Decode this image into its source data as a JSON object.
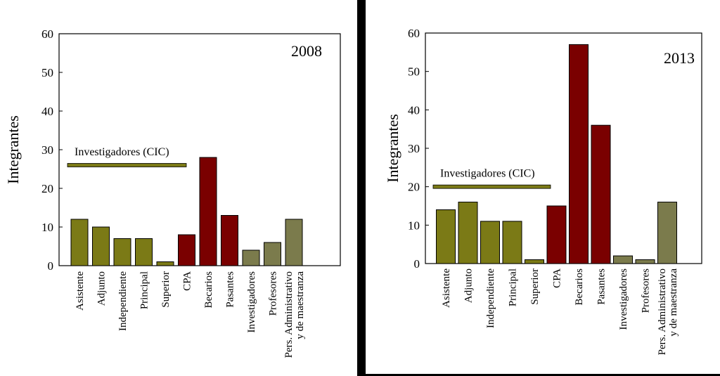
{
  "chart_data": [
    {
      "type": "bar",
      "title": "2008",
      "ylabel": "Integrantes",
      "xlabel": "",
      "ylim": [
        0,
        60
      ],
      "yticks": [
        0,
        10,
        20,
        30,
        40,
        50,
        60
      ],
      "categories": [
        "Asistente",
        "Adjunto",
        "Independiente",
        "Principal",
        "Superior",
        "CPA",
        "Becarios",
        "Pasantes",
        "Investigadores",
        "Profesores",
        "Pers. Administrativo\ny de maestranza"
      ],
      "values": [
        12,
        10,
        7,
        7,
        1,
        8,
        28,
        13,
        4,
        6,
        12
      ],
      "bar_colors": [
        "#7b7a16",
        "#7b7a16",
        "#7b7a16",
        "#7b7a16",
        "#7b7a16",
        "#7a0000",
        "#7a0000",
        "#7a0000",
        "#7b7b4c",
        "#7b7b4c",
        "#7b7b4c"
      ],
      "annotation": {
        "text": "Investigadores (CIC)",
        "value": 26,
        "from_index": 0,
        "to_index": 4,
        "color": "#7b7a16"
      },
      "grid": false,
      "legend": "none"
    },
    {
      "type": "bar",
      "title": "2013",
      "ylabel": "Integrantes",
      "xlabel": "",
      "ylim": [
        0,
        60
      ],
      "yticks": [
        0,
        10,
        20,
        30,
        40,
        50,
        60
      ],
      "categories": [
        "Asistente",
        "Adjunto",
        "Independiente",
        "Principal",
        "Superior",
        "CPA",
        "Becarios",
        "Pasantes",
        "Investigadores",
        "Profesores",
        "Pers. Administrativo\ny de maestranza"
      ],
      "values": [
        14,
        16,
        11,
        11,
        1,
        15,
        57,
        36,
        2,
        1,
        16
      ],
      "bar_colors": [
        "#7b7a16",
        "#7b7a16",
        "#7b7a16",
        "#7b7a16",
        "#7b7a16",
        "#7a0000",
        "#7a0000",
        "#7a0000",
        "#7b7b4c",
        "#7b7b4c",
        "#7b7b4c"
      ],
      "annotation": {
        "text": "Investigadores (CIC)",
        "value": 20,
        "from_index": 0,
        "to_index": 4,
        "color": "#7b7a16"
      },
      "grid": false,
      "legend": "none"
    }
  ]
}
